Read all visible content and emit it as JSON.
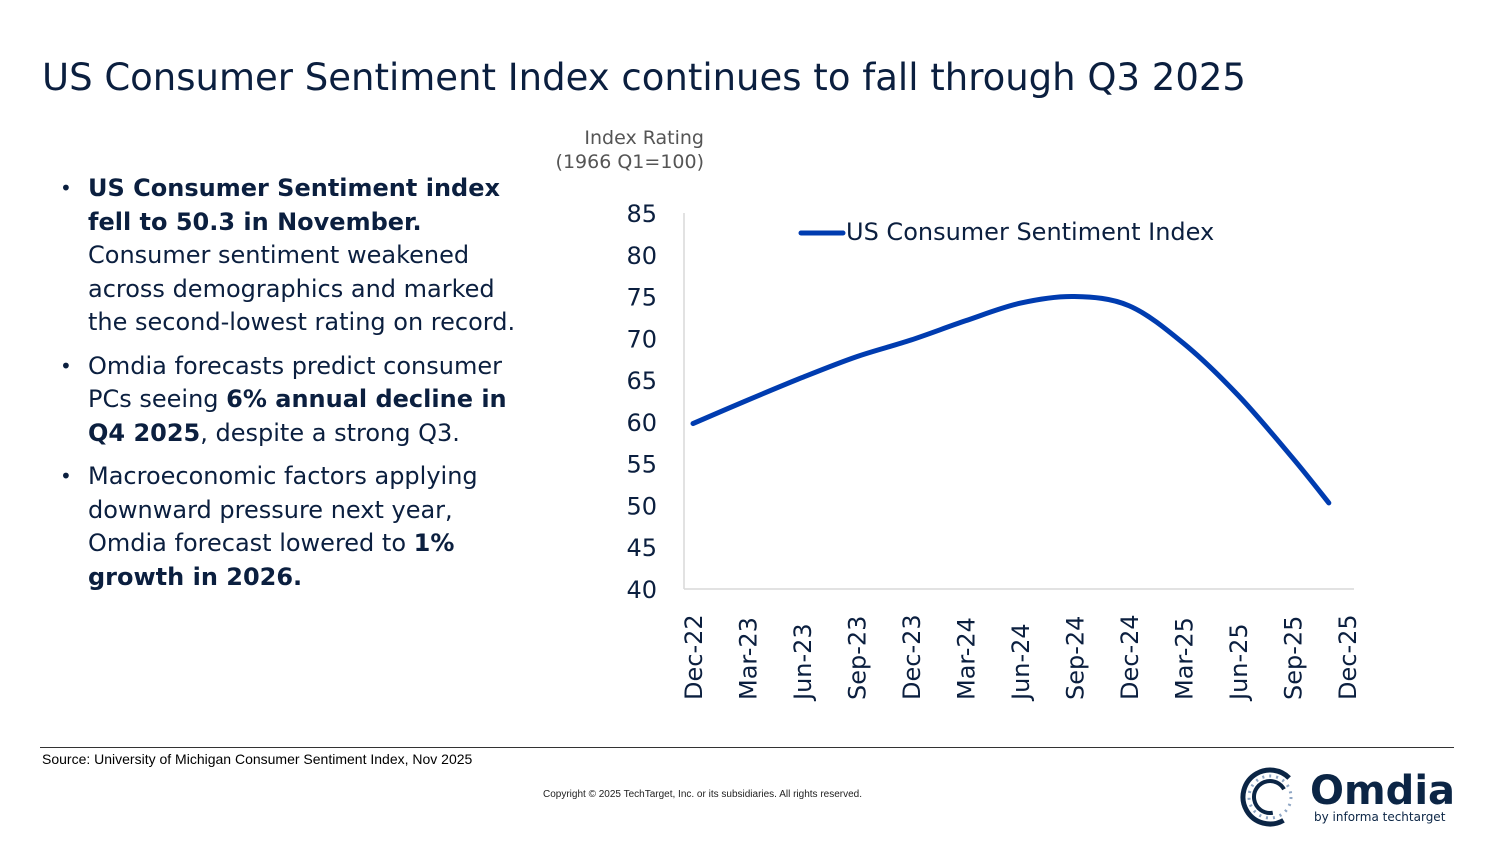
{
  "title": "US Consumer Sentiment Index continues to fall through Q3 2025",
  "bullets": [
    [
      {
        "t": "US Consumer Sentiment index fell to 50.3 in November.",
        "b": true
      },
      {
        "t": " Consumer sentiment weakened across demographics and marked the second-lowest rating on record.",
        "b": false
      }
    ],
    [
      {
        "t": "Omdia forecasts predict consumer PCs seeing ",
        "b": false
      },
      {
        "t": "6% annual decline in Q4 2025",
        "b": true
      },
      {
        "t": ", despite a strong Q3.",
        "b": false
      }
    ],
    [
      {
        "t": "Macroeconomic factors applying downward pressure next year, Omdia forecast lowered to ",
        "b": false
      },
      {
        "t": "1% growth in 2026.",
        "b": true
      }
    ]
  ],
  "source": "Source: University of Michigan Consumer Sentiment Index, Nov 2025",
  "copyright": "Copyright © 2025 TechTarget, Inc. or its subsidiaries. All rights reserved.",
  "logo": {
    "name": "Omdia",
    "tagline": "by informa techtarget"
  },
  "colors": {
    "title": "#0b1f3f",
    "line": "#003cb0",
    "logo": "#0b2545"
  },
  "chart_data": {
    "type": "line",
    "title": "",
    "ylabel": "Index Rating (1966 Q1=100)",
    "ylabel_lines": [
      "Index Rating",
      "(1966 Q1=100)"
    ],
    "xlabel": "",
    "ylim": [
      40,
      85
    ],
    "yticks": [
      40,
      45,
      50,
      55,
      60,
      65,
      70,
      75,
      80,
      85
    ],
    "xticks": [
      "Dec-22",
      "Mar-23",
      "Jun-23",
      "Sep-23",
      "Dec-23",
      "Mar-24",
      "Jun-24",
      "Sep-24",
      "Dec-24",
      "Mar-25",
      "Jun-25",
      "Sep-25",
      "Dec-25"
    ],
    "grid": false,
    "legend": "top-right",
    "series": [
      {
        "name": "US Consumer Sentiment Index",
        "x": [
          "Dec-22",
          "Mar-23",
          "Jun-23",
          "Sep-23",
          "Dec-23",
          "Mar-24",
          "Jun-24",
          "Sep-24",
          "Dec-24",
          "Mar-25",
          "Jun-25",
          "Sep-25",
          "Nov-25"
        ],
        "values": [
          59.8,
          62.6,
          65.3,
          67.8,
          69.8,
          72.1,
          74.2,
          75.0,
          73.9,
          69.4,
          63.2,
          55.7,
          50.3
        ]
      }
    ]
  }
}
